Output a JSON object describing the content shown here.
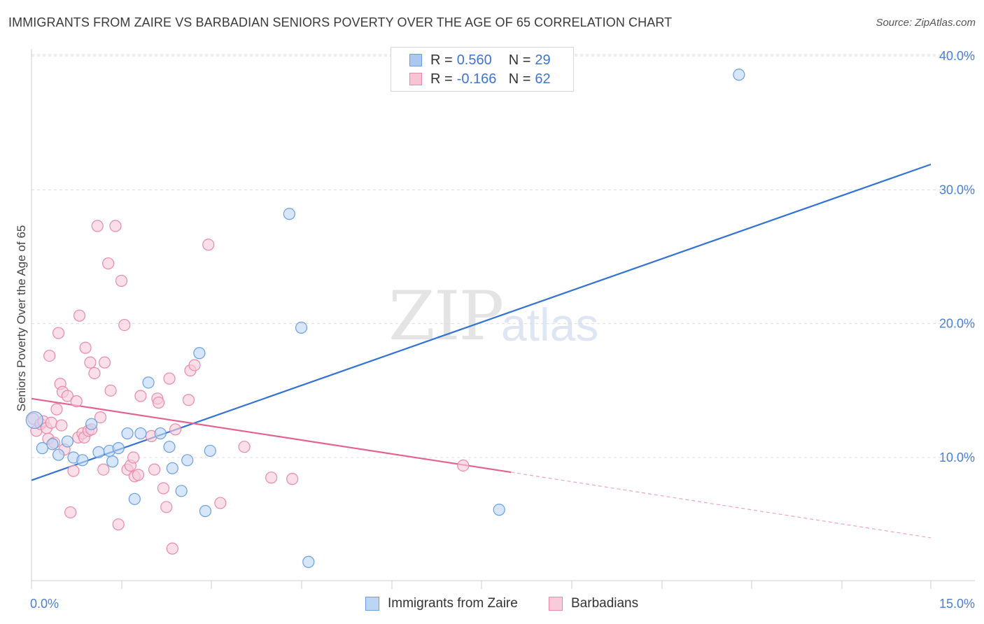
{
  "header": {
    "title": "IMMIGRANTS FROM ZAIRE VS BARBADIAN SENIORS POVERTY OVER THE AGE OF 65 CORRELATION CHART",
    "source": "Source: ZipAtlas.com"
  },
  "watermark": {
    "zip": "ZIP",
    "atlas": "atlas"
  },
  "legend": {
    "rows": [
      {
        "r_label": "R =",
        "r_value": "0.560",
        "n_label": "N =",
        "n_value": "29",
        "color": "#aac8f2",
        "border": "#6a9ee0"
      },
      {
        "r_label": "R =",
        "r_value": "-0.166",
        "n_label": "N =",
        "n_value": "62",
        "color": "#f8c3d3",
        "border": "#e88aa8"
      }
    ]
  },
  "bottom_legend": {
    "items": [
      {
        "label": "Immigrants from Zaire",
        "color": "#bcd5f5",
        "border": "#6a9ee0"
      },
      {
        "label": "Barbadians",
        "color": "#f9cad8",
        "border": "#e88aa8"
      }
    ]
  },
  "chart_data": {
    "type": "scatter",
    "title": "IMMIGRANTS FROM ZAIRE VS BARBADIAN SENIORS POVERTY OVER THE AGE OF 65 CORRELATION CHART",
    "xlabel": "",
    "ylabel": "Seniors Poverty Over the Age of 65",
    "xlim": [
      0,
      15
    ],
    "ylim": [
      0,
      41
    ],
    "x_tick_labels": [
      "0.0%",
      "15.0%"
    ],
    "y_ticks": [
      10,
      20,
      30,
      40
    ],
    "y_tick_labels": [
      "10.0%",
      "20.0%",
      "30.0%",
      "40.0%"
    ],
    "grid": true,
    "series": [
      {
        "name": "Immigrants from Zaire",
        "color": "#6a9ee0",
        "fill": "#bcd5f5",
        "points": [
          {
            "x": 0.05,
            "y": 12.8
          },
          {
            "x": 0.18,
            "y": 10.7
          },
          {
            "x": 0.35,
            "y": 11.0
          },
          {
            "x": 0.45,
            "y": 10.2
          },
          {
            "x": 0.6,
            "y": 11.2
          },
          {
            "x": 0.7,
            "y": 10.0
          },
          {
            "x": 0.85,
            "y": 9.8
          },
          {
            "x": 1.0,
            "y": 12.5
          },
          {
            "x": 1.12,
            "y": 10.4
          },
          {
            "x": 1.3,
            "y": 10.5
          },
          {
            "x": 1.35,
            "y": 9.7
          },
          {
            "x": 1.45,
            "y": 10.7
          },
          {
            "x": 1.6,
            "y": 11.8
          },
          {
            "x": 1.72,
            "y": 6.9
          },
          {
            "x": 1.82,
            "y": 11.8
          },
          {
            "x": 1.95,
            "y": 15.6
          },
          {
            "x": 2.15,
            "y": 11.8
          },
          {
            "x": 2.3,
            "y": 10.8
          },
          {
            "x": 2.35,
            "y": 9.2
          },
          {
            "x": 2.5,
            "y": 7.5
          },
          {
            "x": 2.6,
            "y": 9.8
          },
          {
            "x": 2.8,
            "y": 17.8
          },
          {
            "x": 2.9,
            "y": 6.0
          },
          {
            "x": 2.98,
            "y": 10.5
          },
          {
            "x": 4.3,
            "y": 28.2
          },
          {
            "x": 4.5,
            "y": 19.7
          },
          {
            "x": 4.62,
            "y": 2.2
          },
          {
            "x": 7.8,
            "y": 6.1
          },
          {
            "x": 11.8,
            "y": 38.6
          }
        ],
        "trend": {
          "x0": 0,
          "y0": 8.3,
          "x1": 15,
          "y1": 31.9
        }
      },
      {
        "name": "Barbadians",
        "color": "#e88aa8",
        "fill": "#f9cad8",
        "points": [
          {
            "x": 0.03,
            "y": 12.9
          },
          {
            "x": 0.08,
            "y": 12.0
          },
          {
            "x": 0.15,
            "y": 12.5
          },
          {
            "x": 0.2,
            "y": 12.7
          },
          {
            "x": 0.25,
            "y": 12.2
          },
          {
            "x": 0.28,
            "y": 11.4
          },
          {
            "x": 0.3,
            "y": 17.6
          },
          {
            "x": 0.33,
            "y": 12.6
          },
          {
            "x": 0.38,
            "y": 11.1
          },
          {
            "x": 0.42,
            "y": 13.6
          },
          {
            "x": 0.45,
            "y": 19.3
          },
          {
            "x": 0.48,
            "y": 15.5
          },
          {
            "x": 0.5,
            "y": 12.4
          },
          {
            "x": 0.52,
            "y": 14.9
          },
          {
            "x": 0.55,
            "y": 10.6
          },
          {
            "x": 0.6,
            "y": 14.6
          },
          {
            "x": 0.65,
            "y": 5.9
          },
          {
            "x": 0.7,
            "y": 9.0
          },
          {
            "x": 0.75,
            "y": 14.2
          },
          {
            "x": 0.78,
            "y": 11.5
          },
          {
            "x": 0.8,
            "y": 20.6
          },
          {
            "x": 0.85,
            "y": 11.8
          },
          {
            "x": 0.88,
            "y": 11.5
          },
          {
            "x": 0.9,
            "y": 18.2
          },
          {
            "x": 0.95,
            "y": 12.0
          },
          {
            "x": 0.98,
            "y": 17.1
          },
          {
            "x": 1.0,
            "y": 12.1
          },
          {
            "x": 1.05,
            "y": 16.3
          },
          {
            "x": 1.1,
            "y": 27.3
          },
          {
            "x": 1.15,
            "y": 13.0
          },
          {
            "x": 1.2,
            "y": 9.1
          },
          {
            "x": 1.22,
            "y": 17.1
          },
          {
            "x": 1.28,
            "y": 24.5
          },
          {
            "x": 1.32,
            "y": 15.0
          },
          {
            "x": 1.4,
            "y": 27.3
          },
          {
            "x": 1.45,
            "y": 5.0
          },
          {
            "x": 1.5,
            "y": 23.2
          },
          {
            "x": 1.55,
            "y": 19.9
          },
          {
            "x": 1.6,
            "y": 9.1
          },
          {
            "x": 1.65,
            "y": 9.4
          },
          {
            "x": 1.7,
            "y": 10.0
          },
          {
            "x": 1.72,
            "y": 8.6
          },
          {
            "x": 1.78,
            "y": 8.7
          },
          {
            "x": 1.82,
            "y": 14.6
          },
          {
            "x": 2.0,
            "y": 11.6
          },
          {
            "x": 2.05,
            "y": 9.1
          },
          {
            "x": 2.1,
            "y": 14.4
          },
          {
            "x": 2.12,
            "y": 14.1
          },
          {
            "x": 2.2,
            "y": 7.7
          },
          {
            "x": 2.25,
            "y": 6.3
          },
          {
            "x": 2.3,
            "y": 15.9
          },
          {
            "x": 2.35,
            "y": 3.2
          },
          {
            "x": 2.4,
            "y": 12.1
          },
          {
            "x": 2.62,
            "y": 14.3
          },
          {
            "x": 2.65,
            "y": 16.5
          },
          {
            "x": 2.72,
            "y": 16.9
          },
          {
            "x": 2.95,
            "y": 25.9
          },
          {
            "x": 3.15,
            "y": 6.6
          },
          {
            "x": 3.55,
            "y": 10.8
          },
          {
            "x": 4.0,
            "y": 8.5
          },
          {
            "x": 4.35,
            "y": 8.4
          },
          {
            "x": 7.2,
            "y": 9.4
          }
        ],
        "trend": {
          "x0": 0,
          "y0": 14.4,
          "x1": 8.0,
          "y1": 8.9,
          "dash_x1": 15,
          "dash_y1": 4.0
        }
      }
    ]
  }
}
